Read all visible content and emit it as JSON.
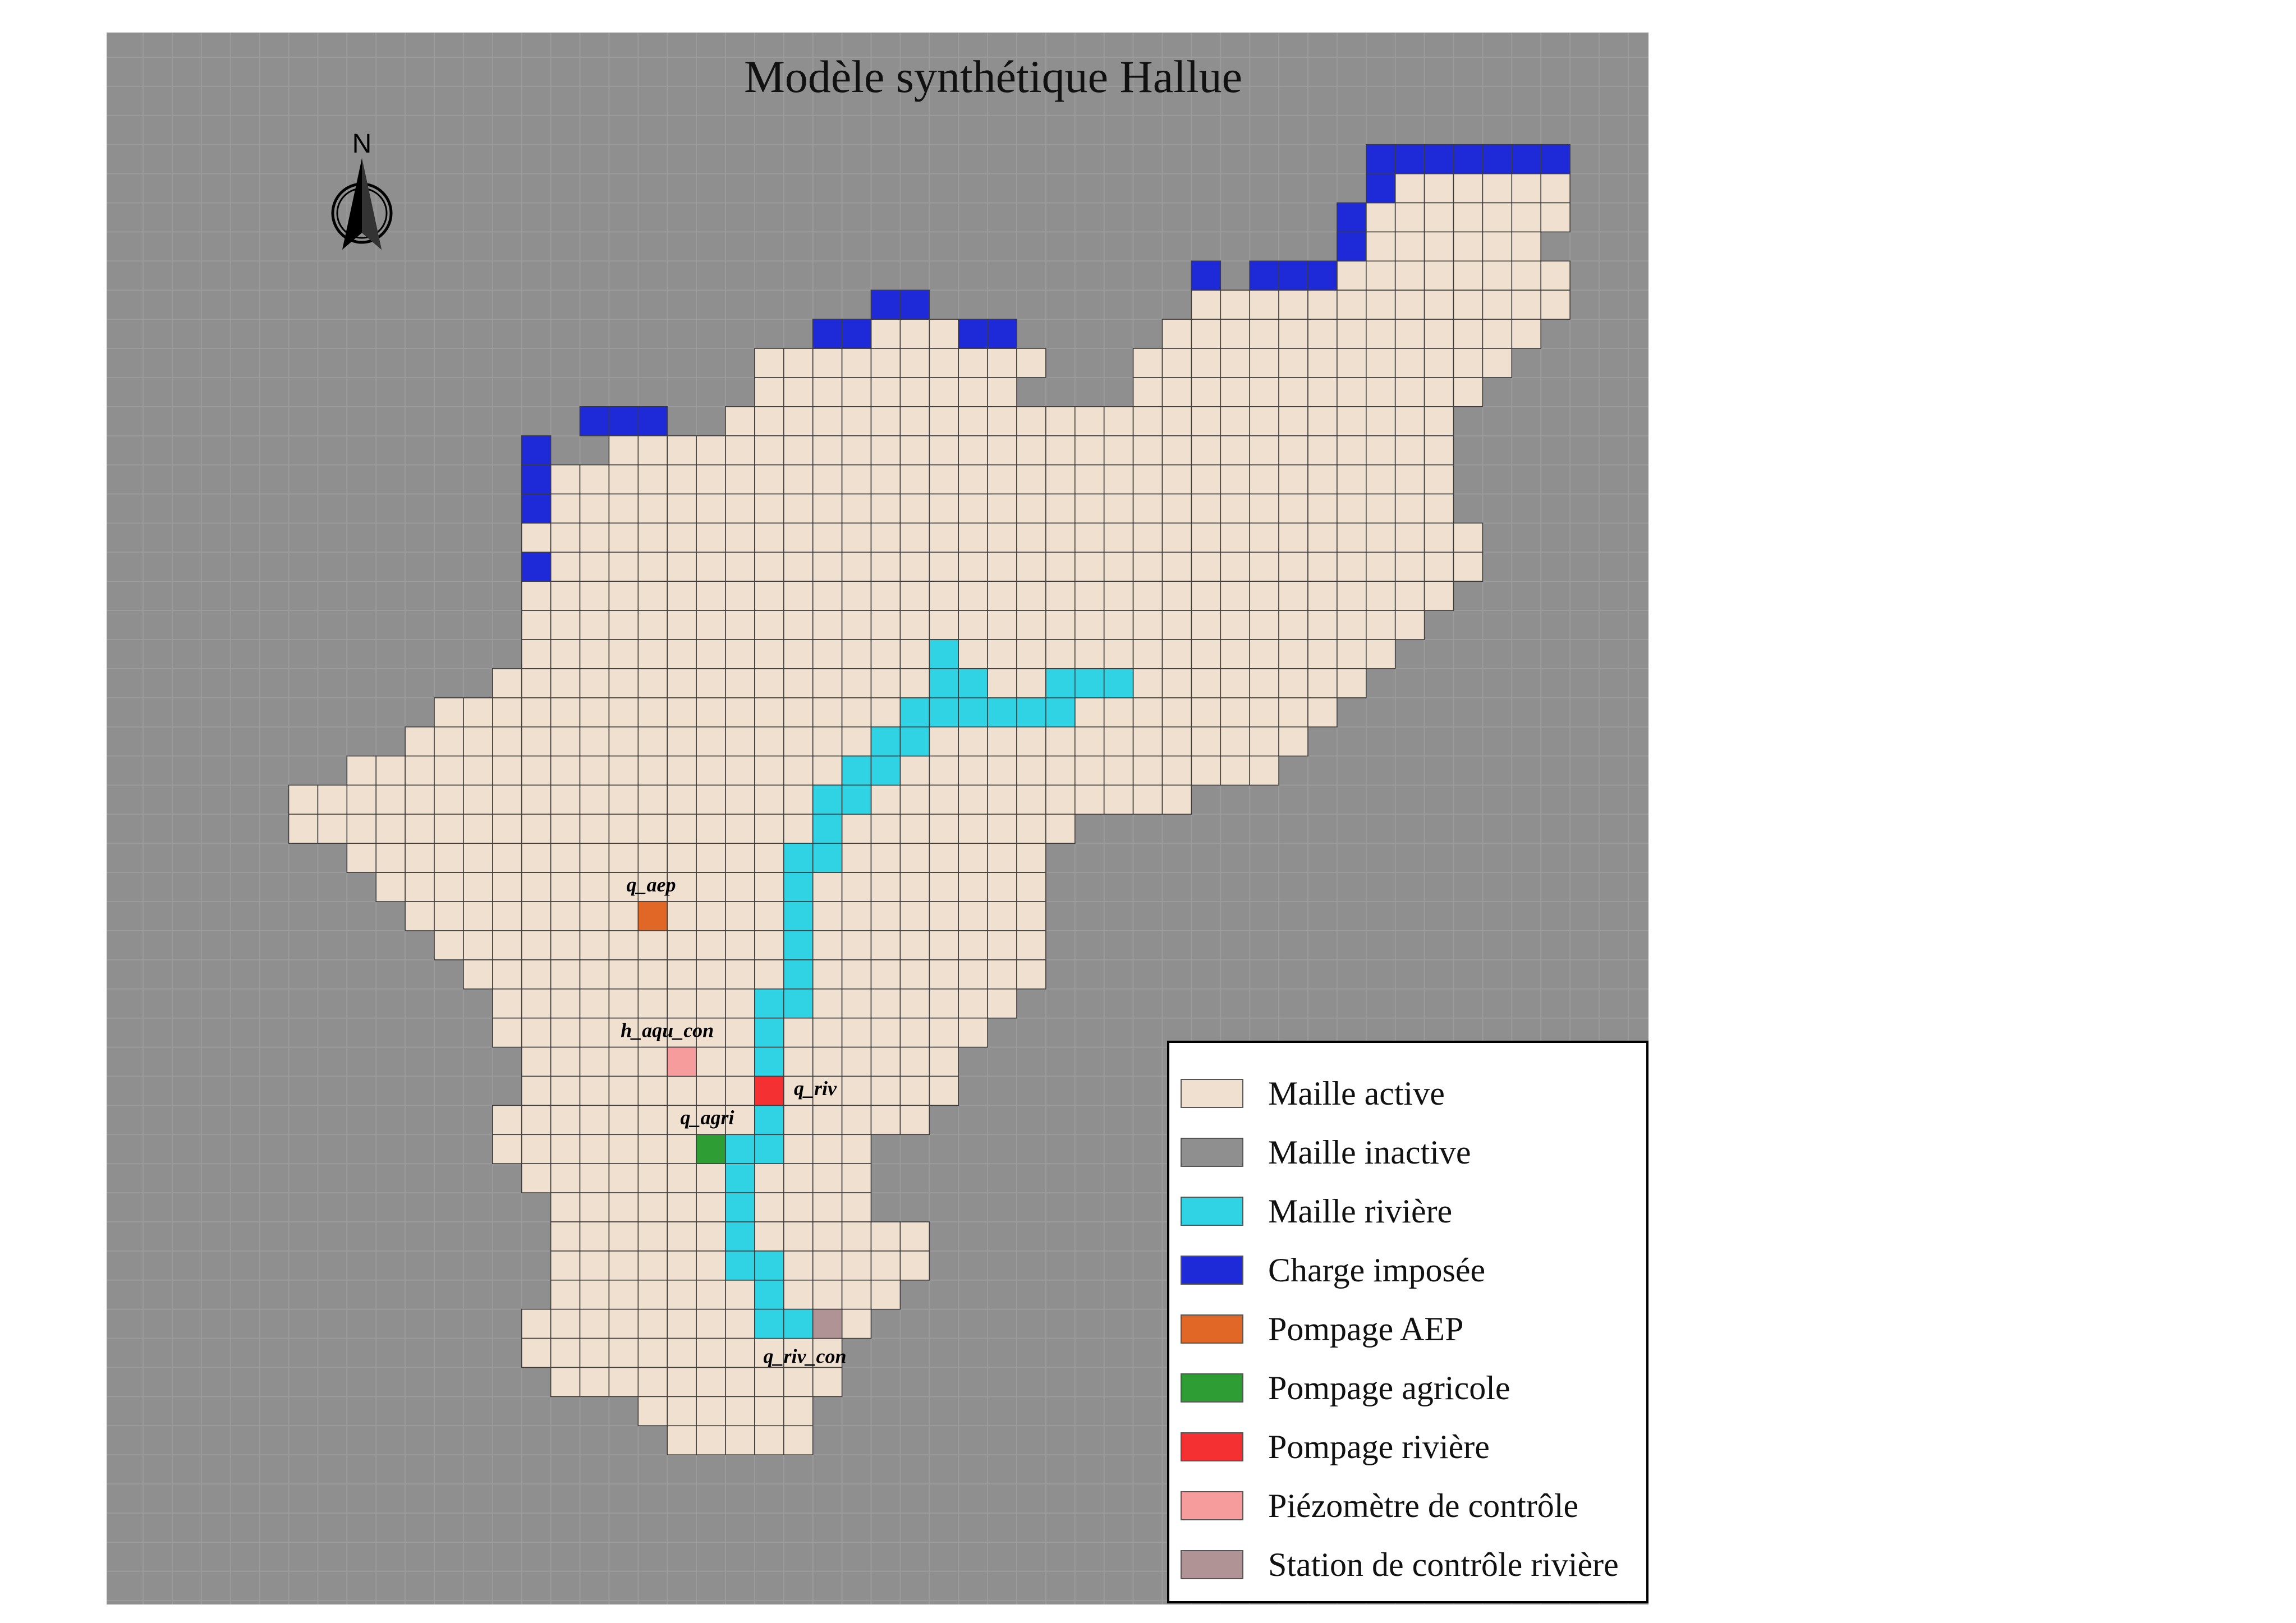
{
  "title": "Modèle synthétique Hallue",
  "north_label": "N",
  "colors": {
    "active": "#efe0cf",
    "inactive": "#8f8f8f",
    "riviere": "#2fd3e4",
    "charge": "#1e2ad7",
    "aep": "#e06726",
    "agricole": "#2e9e34",
    "pompage_riviere": "#f43032",
    "piezometre": "#f79c9c",
    "station": "#b09495"
  },
  "grid": {
    "rows": [
      {
        "row": 4,
        "start": 42,
        "end": 48
      },
      {
        "row": 5,
        "start": 42,
        "end": 48
      },
      {
        "row": 6,
        "start": 41,
        "end": 47
      },
      {
        "row": 7,
        "start": 41,
        "end": 48
      },
      {
        "row": 8,
        "start": 36,
        "end": 48
      },
      {
        "row": 9,
        "start": 23,
        "end": 27
      },
      {
        "row": 9,
        "start": 35,
        "end": 47
      },
      {
        "row": 10,
        "start": 21,
        "end": 30
      },
      {
        "row": 10,
        "start": 34,
        "end": 46
      },
      {
        "row": 11,
        "start": 21,
        "end": 29
      },
      {
        "row": 11,
        "start": 34,
        "end": 45
      },
      {
        "row": 12,
        "start": 20,
        "end": 44
      },
      {
        "row": 13,
        "start": 16,
        "end": 44
      },
      {
        "row": 14,
        "start": 13,
        "end": 44
      },
      {
        "row": 15,
        "start": 13,
        "end": 44
      },
      {
        "row": 16,
        "start": 13,
        "end": 45
      },
      {
        "row": 17,
        "start": 13,
        "end": 45
      },
      {
        "row": 18,
        "start": 13,
        "end": 44
      },
      {
        "row": 19,
        "start": 13,
        "end": 43
      },
      {
        "row": 20,
        "start": 13,
        "end": 42
      },
      {
        "row": 21,
        "start": 12,
        "end": 41
      },
      {
        "row": 22,
        "start": 10,
        "end": 40
      },
      {
        "row": 23,
        "start": 9,
        "end": 39
      },
      {
        "row": 24,
        "start": 7,
        "end": 38
      },
      {
        "row": 25,
        "start": 5,
        "end": 35
      },
      {
        "row": 26,
        "start": 5,
        "end": 31
      },
      {
        "row": 27,
        "start": 7,
        "end": 30
      },
      {
        "row": 28,
        "start": 8,
        "end": 30
      },
      {
        "row": 29,
        "start": 9,
        "end": 30
      },
      {
        "row": 30,
        "start": 10,
        "end": 30
      },
      {
        "row": 31,
        "start": 11,
        "end": 30
      },
      {
        "row": 32,
        "start": 12,
        "end": 29
      },
      {
        "row": 33,
        "start": 12,
        "end": 28
      },
      {
        "row": 34,
        "start": 13,
        "end": 27
      },
      {
        "row": 35,
        "start": 13,
        "end": 27
      },
      {
        "row": 36,
        "start": 12,
        "end": 26
      },
      {
        "row": 37,
        "start": 12,
        "end": 24
      },
      {
        "row": 38,
        "start": 13,
        "end": 24
      },
      {
        "row": 39,
        "start": 14,
        "end": 24
      },
      {
        "row": 40,
        "start": 14,
        "end": 26
      },
      {
        "row": 41,
        "start": 14,
        "end": 26
      },
      {
        "row": 42,
        "start": 14,
        "end": 25
      },
      {
        "row": 43,
        "start": 13,
        "end": 24
      },
      {
        "row": 44,
        "start": 13,
        "end": 23
      },
      {
        "row": 45,
        "start": 14,
        "end": 23
      },
      {
        "row": 46,
        "start": 17,
        "end": 22
      },
      {
        "row": 47,
        "start": 18,
        "end": 22
      }
    ],
    "charge_cells": [
      [
        3,
        42
      ],
      [
        3,
        43
      ],
      [
        3,
        44
      ],
      [
        3,
        45
      ],
      [
        3,
        46
      ],
      [
        3,
        47
      ],
      [
        3,
        48
      ],
      [
        4,
        42
      ],
      [
        5,
        41
      ],
      [
        6,
        41
      ],
      [
        7,
        36
      ],
      [
        7,
        38
      ],
      [
        7,
        39
      ],
      [
        7,
        40
      ],
      [
        8,
        25
      ],
      [
        8,
        26
      ],
      [
        9,
        23
      ],
      [
        9,
        24
      ],
      [
        9,
        28
      ],
      [
        9,
        29
      ],
      [
        12,
        15
      ],
      [
        12,
        16
      ],
      [
        12,
        17
      ],
      [
        13,
        13
      ],
      [
        14,
        13
      ],
      [
        15,
        13
      ],
      [
        17,
        13
      ]
    ],
    "river_cells": [
      [
        20,
        27
      ],
      [
        21,
        27
      ],
      [
        21,
        28
      ],
      [
        21,
        31
      ],
      [
        21,
        32
      ],
      [
        21,
        33
      ],
      [
        22,
        26
      ],
      [
        22,
        27
      ],
      [
        22,
        28
      ],
      [
        22,
        29
      ],
      [
        22,
        30
      ],
      [
        22,
        31
      ],
      [
        23,
        25
      ],
      [
        23,
        26
      ],
      [
        24,
        24
      ],
      [
        24,
        25
      ],
      [
        25,
        23
      ],
      [
        25,
        24
      ],
      [
        26,
        23
      ],
      [
        27,
        22
      ],
      [
        27,
        23
      ],
      [
        28,
        22
      ],
      [
        29,
        22
      ],
      [
        30,
        22
      ],
      [
        31,
        22
      ],
      [
        32,
        21
      ],
      [
        32,
        22
      ],
      [
        33,
        21
      ],
      [
        34,
        21
      ],
      [
        36,
        21
      ],
      [
        37,
        20
      ],
      [
        37,
        21
      ],
      [
        38,
        20
      ],
      [
        39,
        20
      ],
      [
        40,
        20
      ],
      [
        41,
        20
      ],
      [
        41,
        21
      ],
      [
        42,
        21
      ],
      [
        43,
        21
      ],
      [
        43,
        22
      ]
    ],
    "special_cells": [
      {
        "row": 29,
        "col": 17,
        "type": "aep",
        "label": "q_aep"
      },
      {
        "row": 34,
        "col": 18,
        "type": "piezometre",
        "label": "h_aqu_con"
      },
      {
        "row": 35,
        "col": 21,
        "type": "pompage_riviere",
        "label": "q_riv"
      },
      {
        "row": 37,
        "col": 19,
        "type": "agricole",
        "label": "q_agri"
      },
      {
        "row": 43,
        "col": 23,
        "type": "station",
        "label": "q_riv_con"
      }
    ]
  },
  "legend": {
    "items": [
      {
        "label": "Maille active",
        "color_key": "active"
      },
      {
        "label": "Maille inactive",
        "color_key": "inactive"
      },
      {
        "label": "Maille rivière",
        "color_key": "riviere"
      },
      {
        "label": "Charge imposée",
        "color_key": "charge"
      },
      {
        "label": "Pompage AEP",
        "color_key": "aep"
      },
      {
        "label": "Pompage agricole",
        "color_key": "agricole"
      },
      {
        "label": "Pompage rivière",
        "color_key": "pompage_riviere"
      },
      {
        "label": "Piézomètre de contrôle",
        "color_key": "piezometre"
      },
      {
        "label": "Station de contrôle rivière",
        "color_key": "station"
      }
    ]
  }
}
